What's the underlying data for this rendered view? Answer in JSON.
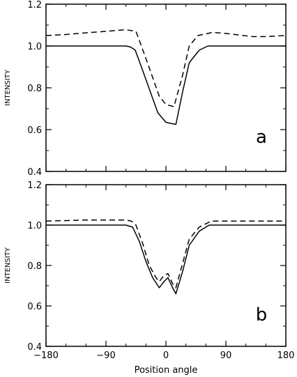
{
  "chart_data": [
    {
      "type": "line",
      "panel_label": "a",
      "ylabel": "INTENSITY",
      "xlabel": "",
      "xlim": [
        -180,
        180
      ],
      "ylim": [
        0.4,
        1.2
      ],
      "x_ticks": [
        -180,
        -90,
        0,
        90,
        180
      ],
      "y_ticks": [
        "0.4",
        "0.6",
        "0.8",
        "1.0",
        "1.2"
      ],
      "x_tick_labels": [],
      "grid": false,
      "series": [
        {
          "style": "solid",
          "x": [
            -180,
            -60,
            -53,
            -46,
            -38,
            -30,
            -20,
            -12,
            0,
            10,
            15,
            25,
            35,
            50,
            63,
            100,
            150,
            180
          ],
          "y": [
            1.0,
            1.0,
            0.995,
            0.98,
            0.91,
            0.84,
            0.75,
            0.68,
            0.635,
            0.628,
            0.625,
            0.78,
            0.92,
            0.98,
            1.0,
            1.0,
            1.0,
            1.0
          ]
        },
        {
          "style": "dashed",
          "x": [
            -180,
            -150,
            -120,
            -90,
            -60,
            -45,
            -38,
            -30,
            -20,
            -10,
            0,
            12,
            25,
            35,
            48,
            70,
            90,
            130,
            150,
            180
          ],
          "y": [
            1.05,
            1.055,
            1.063,
            1.07,
            1.078,
            1.07,
            1.01,
            0.94,
            0.85,
            0.76,
            0.72,
            0.71,
            0.86,
            1.0,
            1.05,
            1.065,
            1.06,
            1.045,
            1.045,
            1.05
          ]
        }
      ]
    },
    {
      "type": "line",
      "panel_label": "b",
      "ylabel": "INTENSITY",
      "xlabel": "Position angle",
      "xlim": [
        -180,
        180
      ],
      "ylim": [
        0.4,
        1.2
      ],
      "x_ticks": [
        -180,
        -90,
        0,
        90,
        180
      ],
      "y_ticks": [
        "0.4",
        "0.6",
        "0.8",
        "1.0",
        "1.2"
      ],
      "x_tick_labels": [
        "−180",
        "−90",
        "0",
        "90",
        "180"
      ],
      "grid": false,
      "series": [
        {
          "style": "solid",
          "x": [
            -180,
            -60,
            -50,
            -40,
            -30,
            -20,
            -10,
            -3,
            3,
            10,
            15,
            25,
            35,
            50,
            65,
            100,
            180
          ],
          "y": [
            1.0,
            1.0,
            0.99,
            0.92,
            0.82,
            0.74,
            0.69,
            0.72,
            0.74,
            0.69,
            0.66,
            0.77,
            0.9,
            0.97,
            1.0,
            1.0,
            1.0
          ]
        },
        {
          "style": "dashed",
          "x": [
            -180,
            -120,
            -60,
            -52,
            -45,
            -35,
            -25,
            -15,
            -10,
            -3,
            3,
            10,
            15,
            25,
            35,
            50,
            68,
            100,
            180
          ],
          "y": [
            1.02,
            1.025,
            1.025,
            1.02,
            1.0,
            0.91,
            0.8,
            0.74,
            0.72,
            0.75,
            0.76,
            0.71,
            0.69,
            0.81,
            0.93,
            0.99,
            1.02,
            1.02,
            1.02
          ]
        }
      ]
    }
  ]
}
